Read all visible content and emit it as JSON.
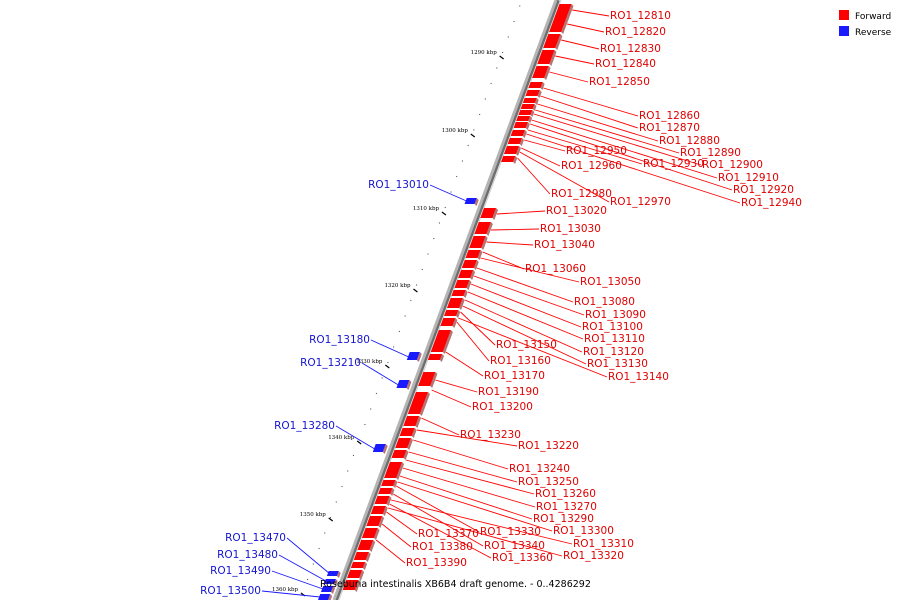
{
  "caption": "Roseburia intestinalis XB6B4 draft genome. - 0..4286292",
  "legend": [
    {
      "label": "Forward",
      "color": "#ff0000"
    },
    {
      "label": "Reverse",
      "color": "#1a1aff"
    }
  ],
  "colors": {
    "forward": "#ff0000",
    "forward_label": "#e00000",
    "reverse": "#1a1aff",
    "reverse_label": "#1414d2",
    "backbone": "#9a9a9a"
  },
  "ticks": [
    {
      "label": "1290 kbp",
      "kbp": 1290
    },
    {
      "label": "1300 kbp",
      "kbp": 1300
    },
    {
      "label": "1310 kbp",
      "kbp": 1310
    },
    {
      "label": "1320 kbp",
      "kbp": 1320
    },
    {
      "label": "1330 kbp",
      "kbp": 1330
    },
    {
      "label": "1340 kbp",
      "kbp": 1340
    },
    {
      "label": "1350 kbp",
      "kbp": 1350
    },
    {
      "label": "1360 kbp",
      "kbp": 1360
    }
  ],
  "forward_genes": [
    "RO1_12810",
    "RO1_12820",
    "RO1_12830",
    "RO1_12840",
    "RO1_12850",
    "RO1_12860",
    "RO1_12870",
    "RO1_12880",
    "RO1_12890",
    "RO1_12950",
    "RO1_12930",
    "RO1_12900",
    "RO1_12960",
    "RO1_12910",
    "RO1_12920",
    "RO1_12980",
    "RO1_12970",
    "RO1_12940",
    "RO1_13020",
    "RO1_13030",
    "RO1_13040",
    "RO1_13060",
    "RO1_13050",
    "RO1_13080",
    "RO1_13090",
    "RO1_13100",
    "RO1_13110",
    "RO1_13150",
    "RO1_13120",
    "RO1_13160",
    "RO1_13130",
    "RO1_13170",
    "RO1_13140",
    "RO1_13190",
    "RO1_13200",
    "RO1_13230",
    "RO1_13220",
    "RO1_13240",
    "RO1_13250",
    "RO1_13260",
    "RO1_13270",
    "RO1_13290",
    "RO1_13370",
    "RO1_13330",
    "RO1_13300",
    "RO1_13380",
    "RO1_13340",
    "RO1_13310",
    "RO1_13360",
    "RO1_13320",
    "RO1_13390"
  ],
  "reverse_genes": [
    "RO1_13010",
    "RO1_13180",
    "RO1_13210",
    "RO1_13280",
    "RO1_13470",
    "RO1_13480",
    "RO1_13490",
    "RO1_13500"
  ]
}
